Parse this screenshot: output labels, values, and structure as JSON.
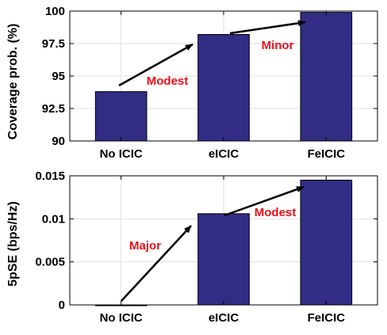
{
  "chart_data": [
    {
      "type": "bar",
      "categories": [
        "No ICIC",
        "eICIC",
        "FeICIC"
      ],
      "values": [
        93.8,
        98.2,
        99.9
      ],
      "ylabel": "Coverage prob. (%)",
      "ylim": [
        90,
        100
      ],
      "yticks": [
        90,
        92.5,
        95,
        97.5,
        100
      ],
      "ytick_labels": [
        "90",
        "92.5",
        "95",
        "97.5",
        "100"
      ],
      "grid": true,
      "bar_color": "#322c85",
      "annotations": [
        {
          "text": "Modest",
          "from_category": "No ICIC",
          "to_category": "eICIC",
          "color": "#e8101a"
        },
        {
          "text": "Minor",
          "from_category": "eICIC",
          "to_category": "FeICIC",
          "color": "#e8101a"
        }
      ]
    },
    {
      "type": "bar",
      "categories": [
        "No ICIC",
        "eICIC",
        "FeICIC"
      ],
      "values": [
        0.0,
        0.0106,
        0.0145
      ],
      "ylabel": "5pSE (bps/Hz)",
      "ylim": [
        0,
        0.015
      ],
      "yticks": [
        0,
        0.005,
        0.01,
        0.015
      ],
      "ytick_labels": [
        "0",
        "0.005",
        "0.01",
        "0.015"
      ],
      "grid": true,
      "bar_color": "#322c85",
      "annotations": [
        {
          "text": "Major",
          "from_category": "No ICIC",
          "to_category": "eICIC",
          "color": "#e8101a"
        },
        {
          "text": "Modest",
          "from_category": "eICIC",
          "to_category": "FeICIC",
          "color": "#e8101a"
        }
      ]
    }
  ]
}
